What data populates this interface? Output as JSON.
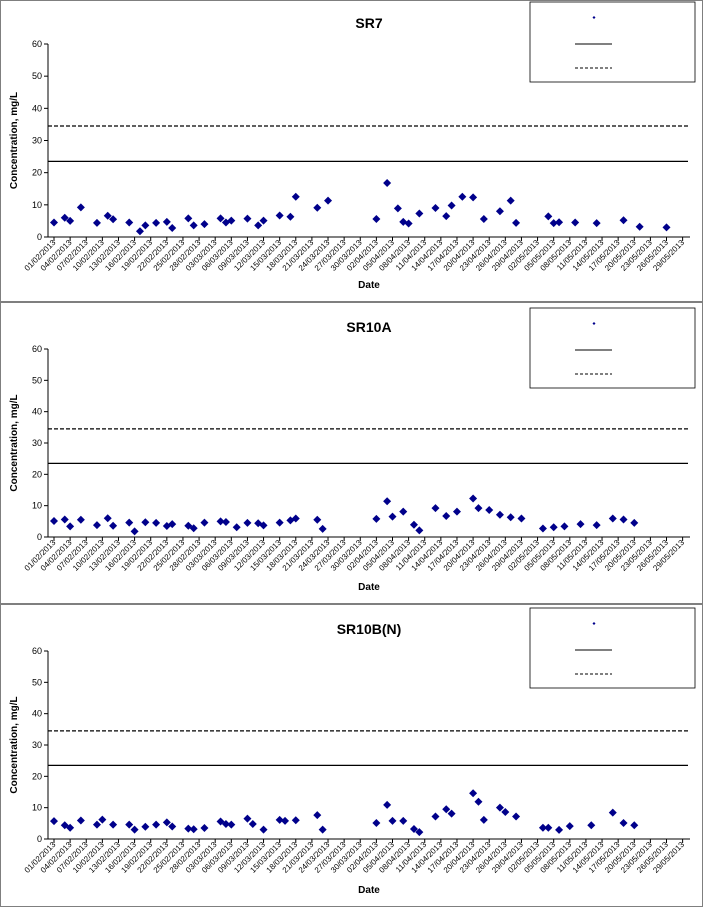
{
  "chart_data": [
    {
      "type": "scatter",
      "title": "SR7",
      "xlabel": "Date",
      "ylabel": "Concentration, mg/L",
      "ylim": [
        0,
        60
      ],
      "yticks": [
        0,
        10,
        20,
        30,
        40,
        50,
        60
      ],
      "x_tick_labels": [
        "01/02/2013",
        "04/02/2013",
        "07/02/2013",
        "10/02/2013",
        "13/02/2013",
        "16/02/2013",
        "19/02/2013",
        "22/02/2013",
        "25/02/2013",
        "28/02/2013",
        "03/03/2013",
        "06/03/2013",
        "09/03/2013",
        "12/03/2013",
        "15/03/2013",
        "18/03/2013",
        "21/03/2013",
        "24/03/2013",
        "27/03/2013",
        "30/03/2013",
        "02/04/2013",
        "05/04/2013",
        "08/04/2013",
        "11/04/2013",
        "14/04/2013",
        "17/04/2013",
        "20/04/2013",
        "23/04/2013",
        "26/04/2013",
        "29/04/2013",
        "02/05/2013",
        "05/05/2013",
        "08/05/2013",
        "11/05/2013",
        "14/05/2013",
        "17/05/2013",
        "20/05/2013",
        "23/05/2013",
        "26/05/2013",
        "29/05/2013"
      ],
      "reference_lines": [
        {
          "value": 23.5,
          "style": "solid"
        },
        {
          "value": 34.5,
          "style": "dashed"
        }
      ],
      "legend_position": "top-right",
      "series": [
        {
          "points": [
            [
              "01/02/2013",
              4.5
            ],
            [
              "03/02/2013",
              6
            ],
            [
              "04/02/2013",
              5
            ],
            [
              "06/02/2013",
              9.2
            ],
            [
              "09/02/2013",
              4.4
            ],
            [
              "11/02/2013",
              6.6
            ],
            [
              "12/02/2013",
              5.5
            ],
            [
              "15/02/2013",
              4.5
            ],
            [
              "17/02/2013",
              1.8
            ],
            [
              "18/02/2013",
              3.6
            ],
            [
              "20/02/2013",
              4.4
            ],
            [
              "22/02/2013",
              4.7
            ],
            [
              "23/02/2013",
              2.8
            ],
            [
              "26/02/2013",
              5.8
            ],
            [
              "27/02/2013",
              3.6
            ],
            [
              "01/03/2013",
              4
            ],
            [
              "04/03/2013",
              5.8
            ],
            [
              "05/03/2013",
              4.5
            ],
            [
              "06/03/2013",
              5.1
            ],
            [
              "09/03/2013",
              5.7
            ],
            [
              "11/03/2013",
              3.6
            ],
            [
              "12/03/2013",
              5.1
            ],
            [
              "15/03/2013",
              6.7
            ],
            [
              "17/03/2013",
              6.3
            ],
            [
              "18/03/2013",
              12.5
            ],
            [
              "22/03/2013",
              9.1
            ],
            [
              "24/03/2013",
              11.3
            ],
            [
              "02/04/2013",
              5.6
            ],
            [
              "04/04/2013",
              16.8
            ],
            [
              "06/04/2013",
              8.9
            ],
            [
              "07/04/2013",
              4.7
            ],
            [
              "08/04/2013",
              4.2
            ],
            [
              "10/04/2013",
              7.3
            ],
            [
              "13/04/2013",
              9
            ],
            [
              "15/04/2013",
              6.5
            ],
            [
              "16/04/2013",
              9.8
            ],
            [
              "18/04/2013",
              12.5
            ],
            [
              "20/04/2013",
              12.3
            ],
            [
              "22/04/2013",
              5.6
            ],
            [
              "25/04/2013",
              8
            ],
            [
              "27/04/2013",
              11.3
            ],
            [
              "28/04/2013",
              4.4
            ],
            [
              "04/05/2013",
              6.4
            ],
            [
              "05/05/2013",
              4.3
            ],
            [
              "06/05/2013",
              4.6
            ],
            [
              "09/05/2013",
              4.5
            ],
            [
              "13/05/2013",
              4.3
            ],
            [
              "18/05/2013",
              5.2
            ],
            [
              "21/05/2013",
              3.2
            ],
            [
              "26/05/2013",
              3
            ]
          ]
        }
      ]
    },
    {
      "type": "scatter",
      "title": "SR10A",
      "xlabel": "Date",
      "ylabel": "Concentration, mg/L",
      "ylim": [
        0,
        60
      ],
      "yticks": [
        0,
        10,
        20,
        30,
        40,
        50,
        60
      ],
      "x_tick_labels": [
        "01/02/2013",
        "04/02/2013",
        "07/02/2013",
        "10/02/2013",
        "13/02/2013",
        "16/02/2013",
        "19/02/2013",
        "22/02/2013",
        "25/02/2013",
        "28/02/2013",
        "03/03/2013",
        "06/03/2013",
        "09/03/2013",
        "12/03/2013",
        "15/03/2013",
        "18/03/2013",
        "21/03/2013",
        "24/03/2013",
        "27/03/2013",
        "30/03/2013",
        "02/04/2013",
        "05/04/2013",
        "08/04/2013",
        "11/04/2013",
        "14/04/2013",
        "17/04/2013",
        "20/04/2013",
        "23/04/2013",
        "26/04/2013",
        "29/04/2013",
        "02/05/2013",
        "05/05/2013",
        "08/05/2013",
        "11/05/2013",
        "14/05/2013",
        "17/05/2013",
        "20/05/2013",
        "23/05/2013",
        "26/05/2013",
        "29/05/2013"
      ],
      "reference_lines": [
        {
          "value": 23.5,
          "style": "solid"
        },
        {
          "value": 34.5,
          "style": "dashed"
        }
      ],
      "legend_position": "top-right",
      "series": [
        {
          "points": [
            [
              "01/02/2013",
              5.1
            ],
            [
              "03/02/2013",
              5.6
            ],
            [
              "04/02/2013",
              3.4
            ],
            [
              "06/02/2013",
              5.5
            ],
            [
              "09/02/2013",
              3.8
            ],
            [
              "11/02/2013",
              6
            ],
            [
              "12/02/2013",
              3.6
            ],
            [
              "15/02/2013",
              4.6
            ],
            [
              "16/02/2013",
              1.8
            ],
            [
              "18/02/2013",
              4.7
            ],
            [
              "20/02/2013",
              4.5
            ],
            [
              "22/02/2013",
              3.5
            ],
            [
              "23/02/2013",
              4.1
            ],
            [
              "26/02/2013",
              3.6
            ],
            [
              "27/02/2013",
              2.8
            ],
            [
              "01/03/2013",
              4.6
            ],
            [
              "04/03/2013",
              5
            ],
            [
              "05/03/2013",
              4.8
            ],
            [
              "07/03/2013",
              3.1
            ],
            [
              "09/03/2013",
              4.5
            ],
            [
              "11/03/2013",
              4.4
            ],
            [
              "12/03/2013",
              3.7
            ],
            [
              "15/03/2013",
              4.6
            ],
            [
              "17/03/2013",
              5.3
            ],
            [
              "18/03/2013",
              5.9
            ],
            [
              "22/03/2013",
              5.5
            ],
            [
              "23/03/2013",
              2.6
            ],
            [
              "02/04/2013",
              5.8
            ],
            [
              "04/04/2013",
              11.4
            ],
            [
              "05/04/2013",
              6.5
            ],
            [
              "07/04/2013",
              8.1
            ],
            [
              "09/04/2013",
              3.9
            ],
            [
              "10/04/2013",
              2.1
            ],
            [
              "13/04/2013",
              9.2
            ],
            [
              "15/04/2013",
              6.7
            ],
            [
              "17/04/2013",
              8.1
            ],
            [
              "20/04/2013",
              12.3
            ],
            [
              "21/04/2013",
              9.2
            ],
            [
              "23/04/2013",
              8.6
            ],
            [
              "25/04/2013",
              7.1
            ],
            [
              "27/04/2013",
              6.3
            ],
            [
              "29/04/2013",
              5.9
            ],
            [
              "03/05/2013",
              2.7
            ],
            [
              "05/05/2013",
              3.1
            ],
            [
              "07/05/2013",
              3.4
            ],
            [
              "10/05/2013",
              4.1
            ],
            [
              "13/05/2013",
              3.8
            ],
            [
              "16/05/2013",
              5.9
            ],
            [
              "18/05/2013",
              5.6
            ],
            [
              "20/05/2013",
              4.5
            ]
          ]
        }
      ]
    },
    {
      "type": "scatter",
      "title": "SR10B(N)",
      "xlabel": "Date",
      "ylabel": "Concentration, mg/L",
      "ylim": [
        0,
        60
      ],
      "yticks": [
        0,
        10,
        20,
        30,
        40,
        50,
        60
      ],
      "x_tick_labels": [
        "01/02/2013",
        "04/02/2013",
        "07/02/2013",
        "10/02/2013",
        "13/02/2013",
        "16/02/2013",
        "19/02/2013",
        "22/02/2013",
        "25/02/2013",
        "28/02/2013",
        "03/03/2013",
        "06/03/2013",
        "09/03/2013",
        "12/03/2013",
        "15/03/2013",
        "18/03/2013",
        "21/03/2013",
        "24/03/2013",
        "27/03/2013",
        "30/03/2013",
        "02/04/2013",
        "05/04/2013",
        "08/04/2013",
        "11/04/2013",
        "14/04/2013",
        "17/04/2013",
        "20/04/2013",
        "23/04/2013",
        "26/04/2013",
        "29/04/2013",
        "02/05/2013",
        "05/05/2013",
        "08/05/2013",
        "11/05/2013",
        "14/05/2013",
        "17/05/2013",
        "20/05/2013",
        "23/05/2013",
        "26/05/2013",
        "29/05/2013"
      ],
      "reference_lines": [
        {
          "value": 23.5,
          "style": "solid"
        },
        {
          "value": 34.5,
          "style": "dashed"
        }
      ],
      "legend_position": "top-right",
      "series": [
        {
          "points": [
            [
              "01/02/2013",
              5.7
            ],
            [
              "03/02/2013",
              4.4
            ],
            [
              "04/02/2013",
              3.6
            ],
            [
              "06/02/2013",
              5.9
            ],
            [
              "09/02/2013",
              4.6
            ],
            [
              "10/02/2013",
              6.2
            ],
            [
              "12/02/2013",
              4.6
            ],
            [
              "15/02/2013",
              4.6
            ],
            [
              "16/02/2013",
              3
            ],
            [
              "18/02/2013",
              3.9
            ],
            [
              "20/02/2013",
              4.6
            ],
            [
              "22/02/2013",
              5.3
            ],
            [
              "23/02/2013",
              4
            ],
            [
              "26/02/2013",
              3.3
            ],
            [
              "27/02/2013",
              3.1
            ],
            [
              "01/03/2013",
              3.5
            ],
            [
              "04/03/2013",
              5.6
            ],
            [
              "05/03/2013",
              4.8
            ],
            [
              "06/03/2013",
              4.6
            ],
            [
              "09/03/2013",
              6.5
            ],
            [
              "10/03/2013",
              4.8
            ],
            [
              "12/03/2013",
              3
            ],
            [
              "15/03/2013",
              6.1
            ],
            [
              "16/03/2013",
              5.8
            ],
            [
              "18/03/2013",
              6
            ],
            [
              "22/03/2013",
              7.6
            ],
            [
              "23/03/2013",
              3
            ],
            [
              "02/04/2013",
              5.1
            ],
            [
              "04/04/2013",
              10.9
            ],
            [
              "05/04/2013",
              5.8
            ],
            [
              "07/04/2013",
              5.8
            ],
            [
              "09/04/2013",
              3.2
            ],
            [
              "10/04/2013",
              2.2
            ],
            [
              "13/04/2013",
              7.2
            ],
            [
              "15/04/2013",
              9.5
            ],
            [
              "16/04/2013",
              8.1
            ],
            [
              "20/04/2013",
              14.6
            ],
            [
              "21/04/2013",
              11.9
            ],
            [
              "22/04/2013",
              6.1
            ],
            [
              "25/04/2013",
              10
            ],
            [
              "26/04/2013",
              8.6
            ],
            [
              "28/04/2013",
              7.2
            ],
            [
              "03/05/2013",
              3.6
            ],
            [
              "04/05/2013",
              3.6
            ],
            [
              "06/05/2013",
              2.9
            ],
            [
              "08/05/2013",
              4.1
            ],
            [
              "12/05/2013",
              4.4
            ],
            [
              "16/05/2013",
              8.4
            ],
            [
              "18/05/2013",
              5.1
            ],
            [
              "20/05/2013",
              4.4
            ]
          ]
        }
      ]
    }
  ],
  "styles": {
    "marker_color": "#00008b",
    "line_color": "#000000",
    "frame_color": "#7f7f7f"
  }
}
